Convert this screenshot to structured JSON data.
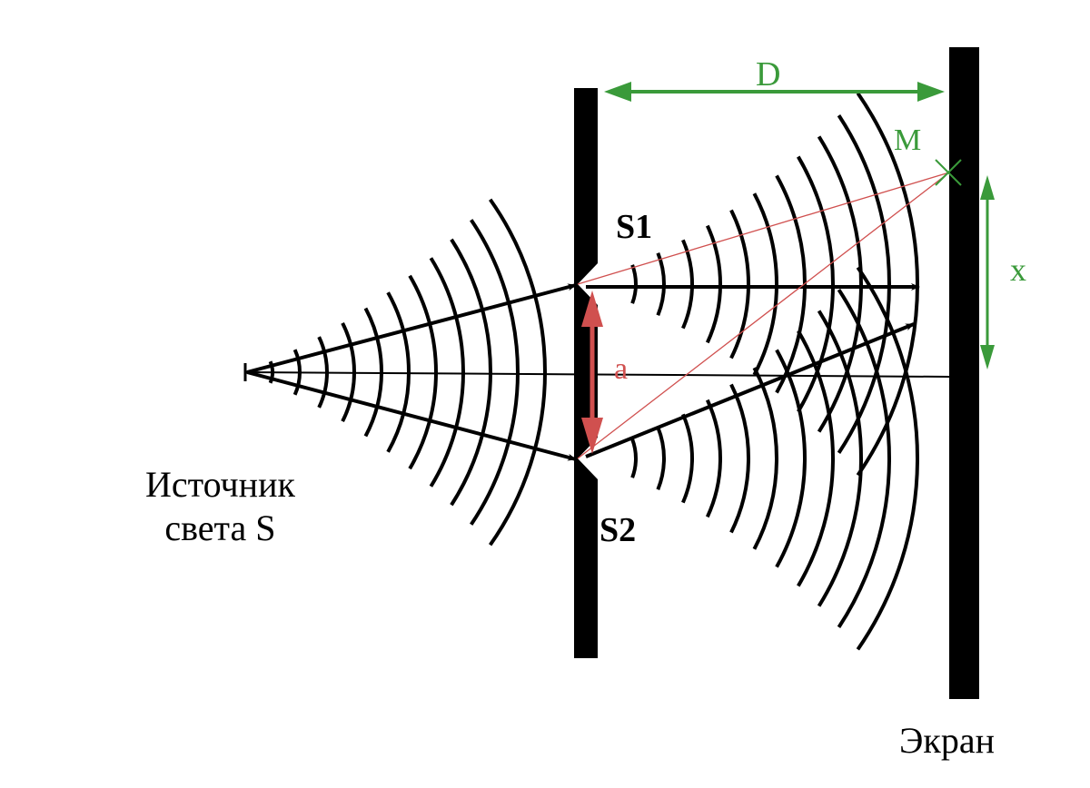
{
  "labels": {
    "s1": "S1",
    "s2": "S2",
    "source_line1": "Источник",
    "source_line2": "света S",
    "screen": "Экран",
    "distance": "D",
    "point": "M",
    "offset": "x",
    "slit_gap": "a"
  },
  "colors": {
    "waves": "#000000",
    "green": "#3a9a3a",
    "red": "#d0504f"
  }
}
